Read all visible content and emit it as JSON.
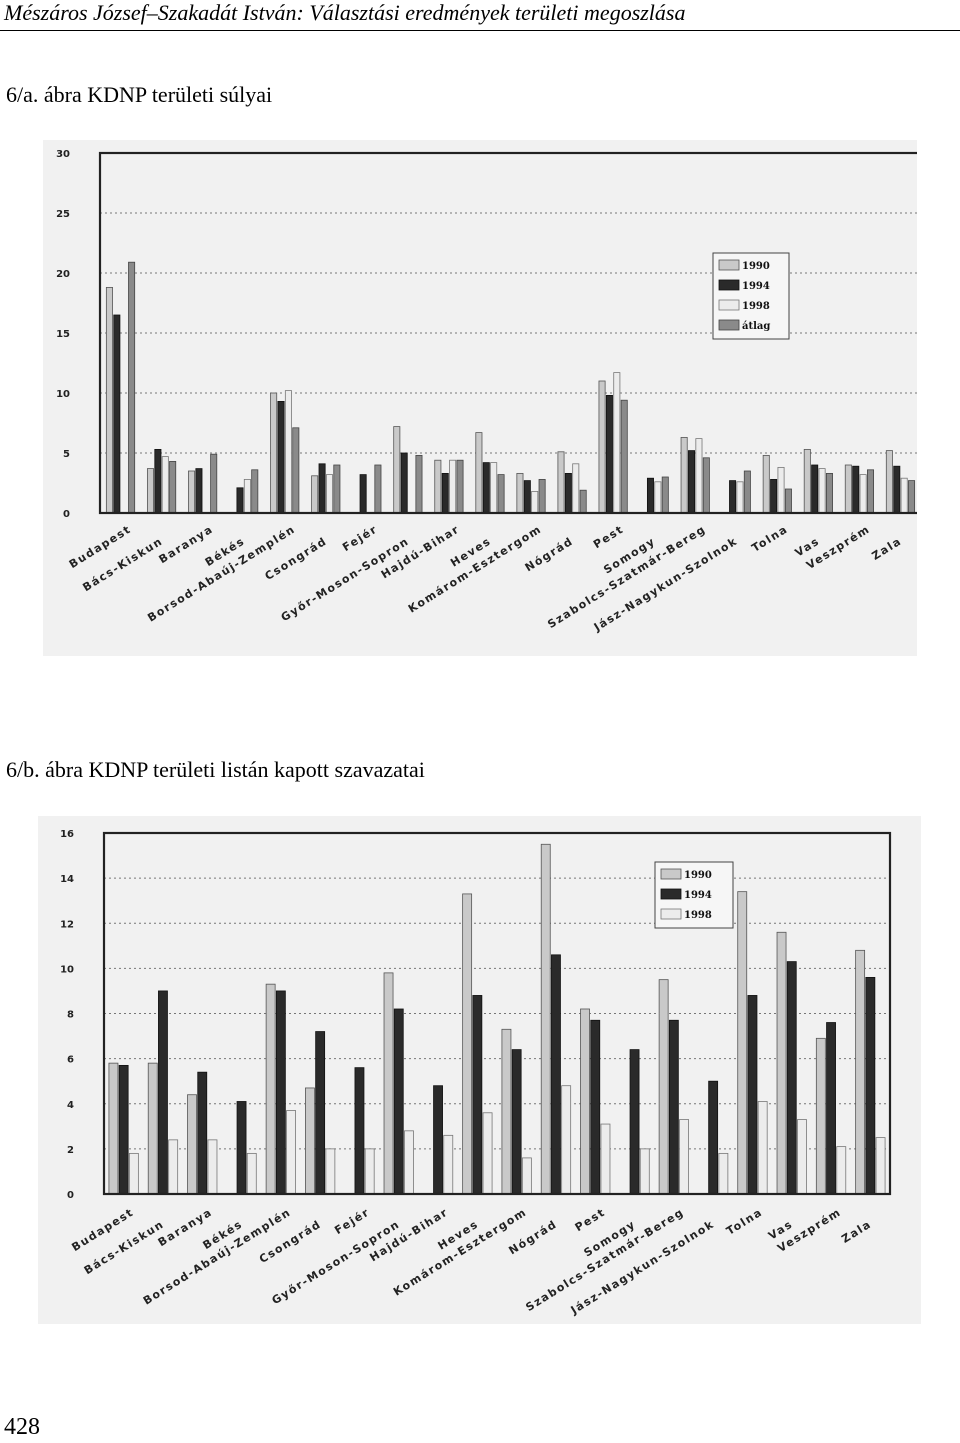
{
  "header": {
    "title": "Mészáros József–Szakadát István: Választási eredmények területi megoszlása"
  },
  "captions": {
    "fig_a": "6/a. ábra KDNP területi súlyai",
    "fig_b": "6/b. ábra KDNP területi listán kapott szavazatai"
  },
  "page_number": "428",
  "chart_data": [
    {
      "type": "bar",
      "categories": [
        "Budapest",
        "Bács-Kiskun",
        "Baranya",
        "Békés",
        "Borsod-Abaúj-Zemplén",
        "Csongrád",
        "Fejér",
        "Győr-Moson-Sopron",
        "Hajdú-Bihar",
        "Heves",
        "Komárom-Esztergom",
        "Nógrád",
        "Pest",
        "Somogy",
        "Szabolcs-Szatmár-Bereg",
        "Jász-Nagykun-Szolnok",
        "Tolna",
        "Vas",
        "Veszprém",
        "Zala"
      ],
      "series": [
        {
          "name": "1990",
          "values": [
            18.8,
            3.7,
            3.5,
            0,
            10.0,
            3.1,
            0,
            7.2,
            4.4,
            6.7,
            3.3,
            5.1,
            11.0,
            0,
            6.3,
            0,
            4.8,
            5.3,
            4.0,
            5.2
          ]
        },
        {
          "name": "1994",
          "values": [
            16.5,
            5.3,
            3.7,
            2.1,
            9.3,
            4.1,
            3.2,
            5.0,
            3.3,
            4.2,
            2.7,
            3.3,
            9.8,
            2.9,
            5.2,
            2.7,
            2.8,
            4.0,
            3.9,
            3.9
          ]
        },
        {
          "name": "1998",
          "values": [
            0,
            4.7,
            0,
            2.8,
            10.2,
            3.2,
            0,
            0,
            4.4,
            4.2,
            1.8,
            4.1,
            11.7,
            2.6,
            6.2,
            2.6,
            3.8,
            3.7,
            3.2,
            2.9
          ]
        },
        {
          "name": "átlag",
          "values": [
            20.9,
            4.3,
            4.9,
            3.6,
            7.1,
            4.0,
            4.0,
            4.8,
            4.4,
            3.2,
            2.8,
            1.9,
            9.4,
            3.0,
            4.6,
            3.5,
            2.0,
            3.3,
            3.6,
            2.7
          ]
        }
      ],
      "ylim": [
        0,
        30
      ],
      "yticks": [
        "0",
        "5",
        "10",
        "15",
        "20",
        "25",
        "30"
      ],
      "grid": true,
      "legend_position": "top-right"
    },
    {
      "type": "bar",
      "categories": [
        "Budapest",
        "Bács-Kiskun",
        "Baranya",
        "Békés",
        "Borsod-Abaúj-Zemplén",
        "Csongrád",
        "Fejér",
        "Győr-Moson-Sopron",
        "Hajdú-Bihar",
        "Heves",
        "Komárom-Esztergom",
        "Nógrád",
        "Pest",
        "Somogy",
        "Szabolcs-Szatmár-Bereg",
        "Jász-Nagykun-Szolnok",
        "Tolna",
        "Vas",
        "Veszprém",
        "Zala"
      ],
      "series": [
        {
          "name": "1990",
          "values": [
            5.8,
            5.8,
            4.4,
            0,
            9.3,
            4.7,
            0,
            9.8,
            0,
            13.3,
            7.3,
            15.5,
            8.2,
            0,
            9.5,
            0,
            13.4,
            11.6,
            6.9,
            10.8
          ]
        },
        {
          "name": "1994",
          "values": [
            5.7,
            9.0,
            5.4,
            4.1,
            9.0,
            7.2,
            5.6,
            8.2,
            4.8,
            8.8,
            6.4,
            10.6,
            7.7,
            6.4,
            7.7,
            5.0,
            8.8,
            10.3,
            7.6,
            9.6
          ]
        },
        {
          "name": "1998",
          "values": [
            1.8,
            2.4,
            2.4,
            1.8,
            3.7,
            2.0,
            2.0,
            2.8,
            2.6,
            3.6,
            1.6,
            4.8,
            3.1,
            2.0,
            3.3,
            1.8,
            4.1,
            3.3,
            2.1,
            2.5
          ]
        }
      ],
      "ylim": [
        0,
        16
      ],
      "yticks": [
        "0",
        "2",
        "4",
        "6",
        "8",
        "10",
        "12",
        "14",
        "16"
      ],
      "grid": true,
      "legend_position": "top-right"
    }
  ],
  "colors": {
    "figure_background": "#f1f1f1",
    "series_1990": "#c9c9c9",
    "series_1994": "#2a2a2a",
    "series_1998": "#ececec",
    "series_atlag": "#8a8a8a"
  }
}
